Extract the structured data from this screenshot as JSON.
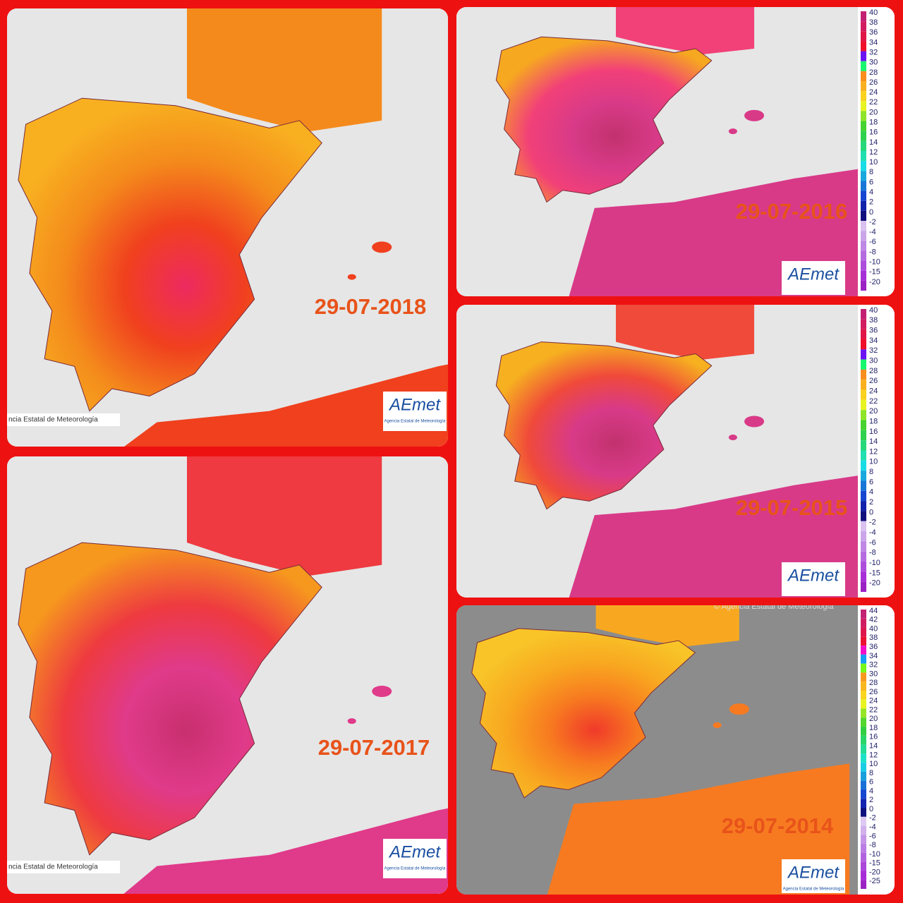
{
  "panels": [
    {
      "date": "29-07-2018",
      "logo": "AEmet",
      "logo_subtitle": "Agencia Estatal de Meteorología",
      "agency": "ncia Estatal de Meteorología"
    },
    {
      "date": "29-07-2017",
      "logo": "AEmet",
      "logo_subtitle": "Agencia Estatal de Meteorología",
      "agency": "ncia Estatal de Meteorología"
    },
    {
      "date": "29-07-2016",
      "logo": "AEmet",
      "scale": [
        "40",
        "38",
        "36",
        "34",
        "32",
        "30",
        "28",
        "26",
        "24",
        "22",
        "20",
        "18",
        "16",
        "14",
        "12",
        "10",
        "8",
        "6",
        "4",
        "2",
        "0",
        "-2",
        "-4",
        "-6",
        "-8",
        "-10",
        "-15",
        "-20"
      ]
    },
    {
      "date": "29-07-2015",
      "logo": "AEmet",
      "scale": [
        "40",
        "38",
        "36",
        "34",
        "32",
        "30",
        "28",
        "26",
        "24",
        "22",
        "20",
        "18",
        "16",
        "14",
        "12",
        "10",
        "8",
        "6",
        "4",
        "2",
        "0",
        "-2",
        "-4",
        "-6",
        "-8",
        "-10",
        "-15",
        "-20"
      ]
    },
    {
      "date": "29-07-2014",
      "logo": "AEmet",
      "logo_subtitle": "Agencia Estatal de Meteorología",
      "copyright": "© Agencia Estatal de Meteorología",
      "scale": [
        "44",
        "42",
        "40",
        "38",
        "36",
        "34",
        "32",
        "30",
        "28",
        "26",
        "24",
        "22",
        "20",
        "18",
        "16",
        "14",
        "12",
        "10",
        "8",
        "6",
        "4",
        "2",
        "0",
        "-2",
        "-4",
        "-6",
        "-8",
        "-10",
        "-15",
        "-20",
        "-25"
      ]
    }
  ]
}
